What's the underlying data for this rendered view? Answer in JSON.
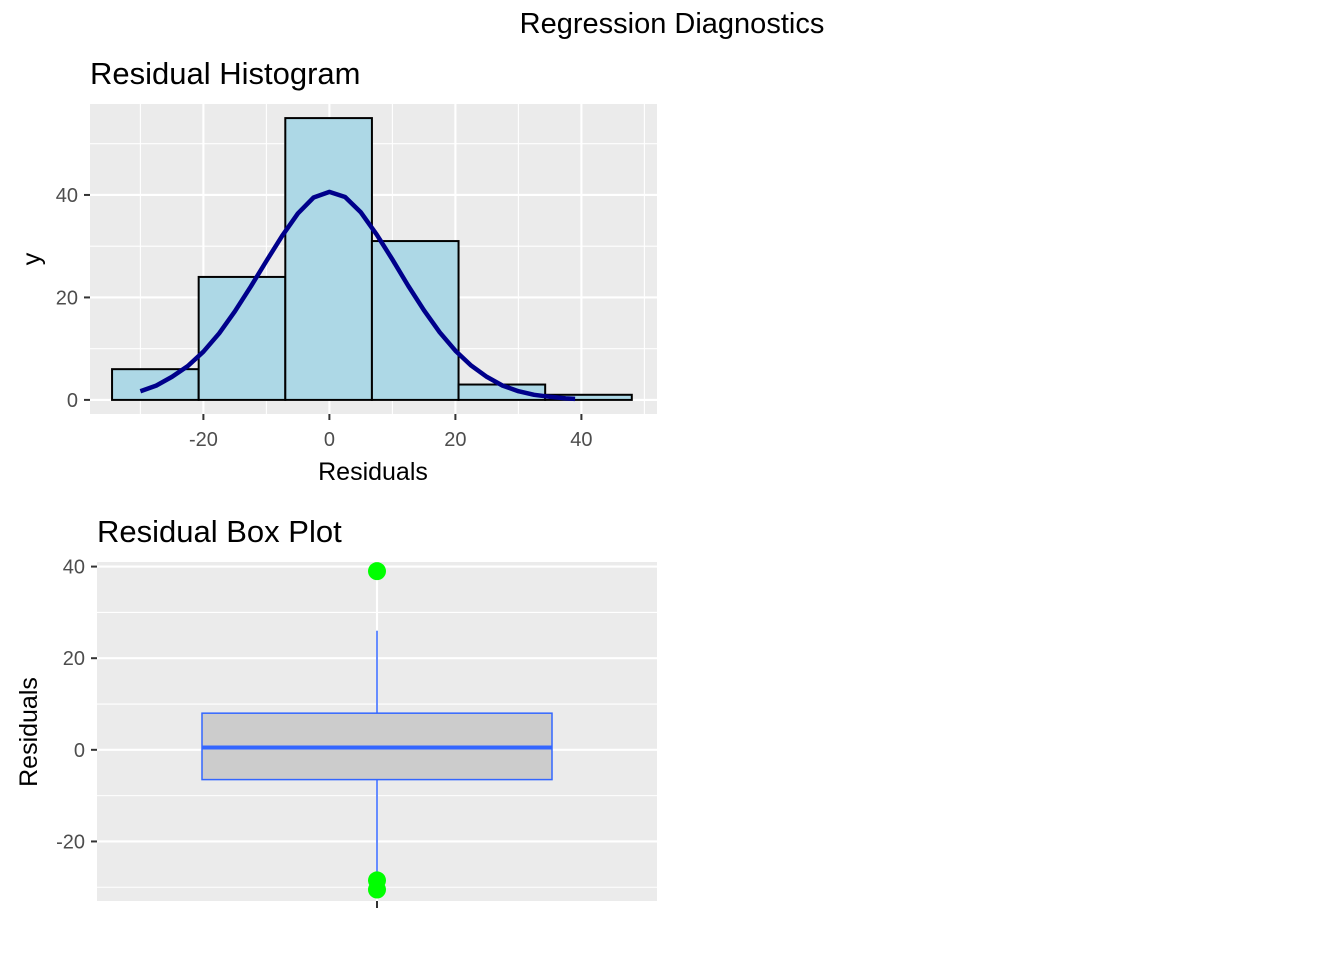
{
  "suptitle": "Regression Diagnostics",
  "colors": {
    "panel_bg": "#EBEBEB",
    "grid_major": "#FFFFFF",
    "hist_fill": "#ADD8E6",
    "hist_stroke": "#000000",
    "density_line": "#00008B",
    "box_stroke": "#3366FF",
    "box_fill": "#CCCCCC",
    "outlier": "#00FF00",
    "tick_text": "#4D4D4D"
  },
  "chart_data": [
    {
      "type": "bar",
      "subtype": "histogram with normal density curve",
      "title": "Residual Histogram",
      "xlabel": "Residuals",
      "ylabel": "y",
      "xlim": [
        -38,
        52
      ],
      "ylim": [
        -2.75,
        57.75
      ],
      "x_ticks": [
        -20,
        0,
        20,
        40
      ],
      "y_ticks": [
        0,
        20,
        40
      ],
      "bins": [
        {
          "x0": -34.5,
          "x1": -20.75,
          "count": 6
        },
        {
          "x0": -20.75,
          "x1": -7.0,
          "count": 24
        },
        {
          "x0": -7.0,
          "x1": 6.75,
          "count": 55
        },
        {
          "x0": 6.75,
          "x1": 20.5,
          "count": 31
        },
        {
          "x0": 20.5,
          "x1": 34.25,
          "count": 3
        },
        {
          "x0": 34.25,
          "x1": 48.0,
          "count": 1
        }
      ],
      "density_curve": {
        "x": [
          -30,
          -27.5,
          -25,
          -22.5,
          -20,
          -17.5,
          -15,
          -12.5,
          -10,
          -7.5,
          -5,
          -2.5,
          0,
          2.5,
          5,
          7.5,
          10,
          12.5,
          15,
          17.5,
          20,
          22.5,
          25,
          27.5,
          30,
          32.5,
          35,
          37.5,
          39
        ],
        "y": [
          1.7,
          2.8,
          4.5,
          6.6,
          9.4,
          13.0,
          17.3,
          22.1,
          27.1,
          32.0,
          36.4,
          39.5,
          40.6,
          39.6,
          36.6,
          32.3,
          27.4,
          22.3,
          17.5,
          13.2,
          9.6,
          6.7,
          4.5,
          2.8,
          1.7,
          1.0,
          0.6,
          0.3,
          0.2
        ]
      },
      "grid": true
    },
    {
      "type": "boxplot",
      "title": "Residual Box Plot",
      "xlabel": "",
      "ylabel": "Residuals",
      "ylim": [
        -33,
        41
      ],
      "y_ticks": [
        -20,
        0,
        20,
        40
      ],
      "box": {
        "lower_whisker": -27.5,
        "q1": -6.5,
        "median": 0.5,
        "q3": 8,
        "upper_whisker": 26
      },
      "outliers": [
        39,
        -28.5,
        -30.5
      ],
      "grid": true
    }
  ]
}
